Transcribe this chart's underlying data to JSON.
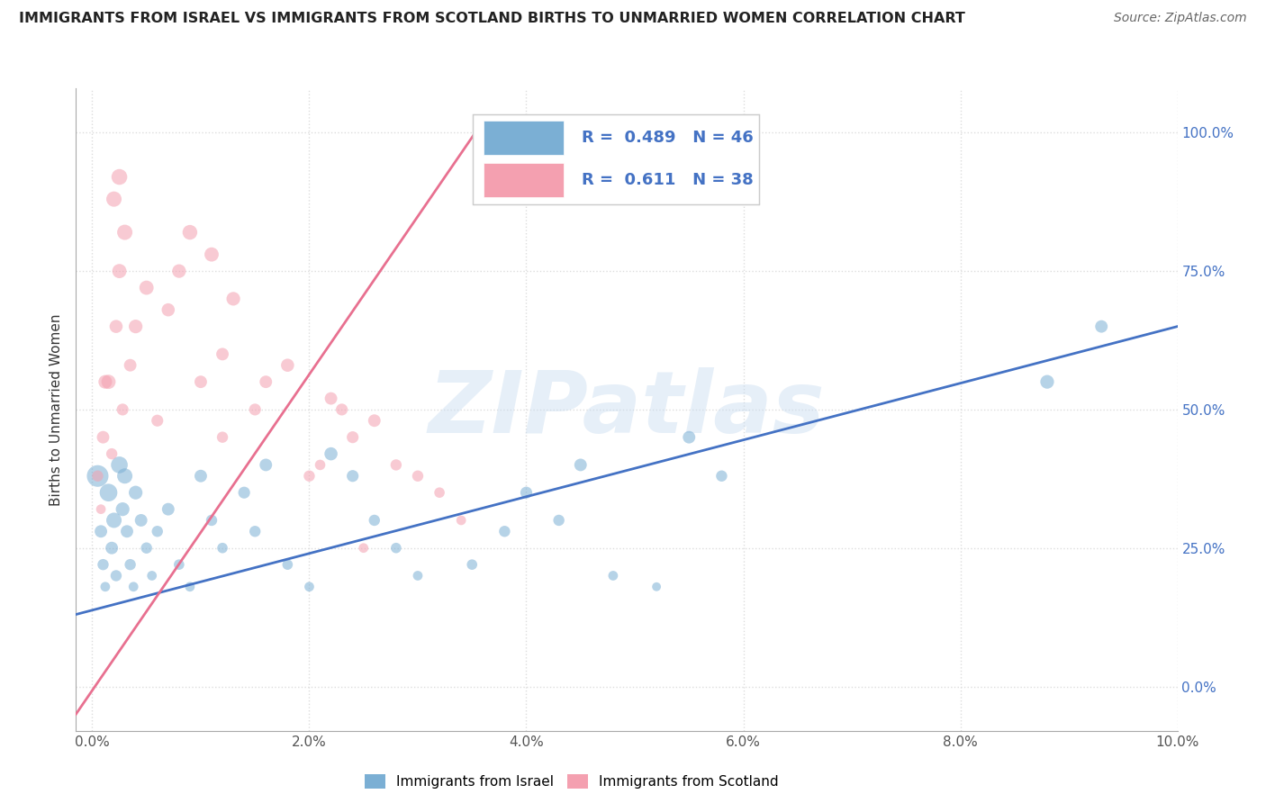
{
  "title": "IMMIGRANTS FROM ISRAEL VS IMMIGRANTS FROM SCOTLAND BIRTHS TO UNMARRIED WOMEN CORRELATION CHART",
  "source": "Source: ZipAtlas.com",
  "ylabel": "Births to Unmarried Women",
  "watermark": "ZIPatlas",
  "legend_label_blue": "Immigrants from Israel",
  "legend_label_pink": "Immigrants from Scotland",
  "r_blue": "0.489",
  "n_blue": "46",
  "r_pink": "0.611",
  "n_pink": "38",
  "xlim": [
    -0.15,
    10.0
  ],
  "ylim": [
    -8.0,
    108.0
  ],
  "x_ticks": [
    0.0,
    2.0,
    4.0,
    6.0,
    8.0,
    10.0
  ],
  "x_tick_labels": [
    "0.0%",
    "2.0%",
    "4.0%",
    "6.0%",
    "8.0%",
    "10.0%"
  ],
  "y_ticks": [
    0,
    25,
    50,
    75,
    100
  ],
  "y_tick_labels": [
    "0.0%",
    "25.0%",
    "50.0%",
    "75.0%",
    "100.0%"
  ],
  "color_blue": "#7BAFD4",
  "color_pink": "#F4A0B0",
  "color_blue_line": "#4472C4",
  "color_pink_line": "#E87090",
  "background": "#FFFFFF",
  "grid_color": "#DDDDDD",
  "blue_x": [
    0.05,
    0.08,
    0.1,
    0.12,
    0.15,
    0.18,
    0.2,
    0.22,
    0.25,
    0.28,
    0.3,
    0.32,
    0.35,
    0.38,
    0.4,
    0.45,
    0.5,
    0.55,
    0.6,
    0.7,
    0.8,
    0.9,
    1.0,
    1.1,
    1.2,
    1.4,
    1.5,
    1.6,
    1.8,
    2.0,
    2.2,
    2.4,
    2.6,
    2.8,
    3.0,
    3.5,
    3.8,
    4.0,
    4.3,
    4.5,
    4.8,
    5.2,
    5.5,
    5.8,
    8.8,
    9.3
  ],
  "blue_y": [
    38,
    28,
    22,
    18,
    35,
    25,
    30,
    20,
    40,
    32,
    38,
    28,
    22,
    18,
    35,
    30,
    25,
    20,
    28,
    32,
    22,
    18,
    38,
    30,
    25,
    35,
    28,
    40,
    22,
    18,
    42,
    38,
    30,
    25,
    20,
    22,
    28,
    35,
    30,
    40,
    20,
    18,
    45,
    38,
    55,
    65
  ],
  "blue_size": [
    300,
    100,
    80,
    60,
    200,
    100,
    150,
    80,
    180,
    120,
    150,
    100,
    80,
    60,
    120,
    100,
    80,
    60,
    80,
    100,
    70,
    60,
    100,
    80,
    70,
    90,
    80,
    100,
    70,
    60,
    110,
    90,
    80,
    70,
    60,
    70,
    80,
    90,
    80,
    100,
    60,
    50,
    100,
    80,
    120,
    100
  ],
  "pink_x": [
    0.05,
    0.08,
    0.1,
    0.12,
    0.15,
    0.18,
    0.22,
    0.25,
    0.28,
    0.3,
    0.35,
    0.4,
    0.5,
    0.6,
    0.7,
    0.8,
    0.9,
    1.0,
    1.1,
    1.2,
    1.3,
    1.5,
    1.6,
    1.8,
    2.0,
    2.2,
    2.4,
    2.6,
    2.8,
    3.0,
    3.2,
    3.4,
    0.2,
    0.25,
    1.2,
    2.1,
    2.3,
    2.5
  ],
  "pink_y": [
    38,
    32,
    45,
    55,
    55,
    42,
    65,
    75,
    50,
    82,
    58,
    65,
    72,
    48,
    68,
    75,
    82,
    55,
    78,
    60,
    70,
    50,
    55,
    58,
    38,
    52,
    45,
    48,
    40,
    38,
    35,
    30,
    88,
    92,
    45,
    40,
    50,
    25
  ],
  "pink_size": [
    80,
    60,
    100,
    120,
    130,
    80,
    110,
    130,
    90,
    150,
    100,
    120,
    130,
    90,
    110,
    120,
    140,
    100,
    130,
    100,
    120,
    90,
    100,
    110,
    80,
    100,
    90,
    100,
    80,
    80,
    70,
    60,
    150,
    160,
    80,
    70,
    90,
    60
  ],
  "blue_line_x": [
    -0.15,
    10.0
  ],
  "blue_line_y": [
    13.0,
    65.0
  ],
  "pink_line_x": [
    -0.15,
    3.6
  ],
  "pink_line_y": [
    -5.0,
    102.0
  ]
}
